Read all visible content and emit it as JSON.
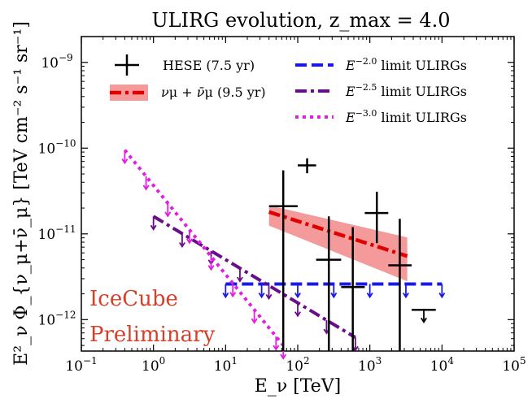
{
  "chart_data": {
    "type": "scatter",
    "title": "ULIRG evolution,  z_max = 4.0",
    "xlabel": "E_ν [TeV]",
    "ylabel": "E²_ν Φ_{ν_μ+ν̄_μ} [TeV cm⁻² s⁻¹ sr⁻¹]",
    "xscale": "log",
    "yscale": "log",
    "xlim": [
      0.1,
      100000
    ],
    "ylim": [
      4.3e-13,
      2e-09
    ],
    "x_ticks": [
      {
        "value": 0.1,
        "base": "10",
        "exp": "−1"
      },
      {
        "value": 1,
        "base": "10",
        "exp": "0"
      },
      {
        "value": 10,
        "base": "10",
        "exp": "1"
      },
      {
        "value": 100,
        "base": "10",
        "exp": "2"
      },
      {
        "value": 1000,
        "base": "10",
        "exp": "3"
      },
      {
        "value": 10000,
        "base": "10",
        "exp": "4"
      },
      {
        "value": 100000,
        "base": "10",
        "exp": "5"
      }
    ],
    "y_ticks": [
      {
        "value": 1e-12,
        "base": "10",
        "exp": "−12"
      },
      {
        "value": 1e-11,
        "base": "10",
        "exp": "−11"
      },
      {
        "value": 1e-10,
        "base": "10",
        "exp": "−10"
      },
      {
        "value": 1e-09,
        "base": "10",
        "exp": "−9"
      }
    ],
    "annotation": [
      "IceCube",
      "Preliminary"
    ],
    "legend_position": "top",
    "series": [
      {
        "name": "HESE (7.5 yr)",
        "kind": "errorbar",
        "color": "#000000",
        "points": [
          {
            "x": 63,
            "y": 2.1e-11,
            "xlo": 40,
            "xhi": 100,
            "ylo": 4.3e-13,
            "yhi": 5.5e-11
          },
          {
            "x": 135,
            "y": 6.3e-11,
            "xlo": 100,
            "xhi": 180,
            "ylo": 5.1e-11,
            "yhi": 7.6e-11
          },
          {
            "x": 270,
            "y": 5e-12,
            "xlo": 180,
            "xhi": 400,
            "ylo": 4.3e-13,
            "yhi": 1.6e-11
          },
          {
            "x": 580,
            "y": 2.4e-12,
            "xlo": 400,
            "xhi": 850,
            "ylo": 4.3e-13,
            "yhi": 1.2e-11
          },
          {
            "x": 1250,
            "y": 1.75e-11,
            "xlo": 850,
            "xhi": 1800,
            "ylo": 7.8e-12,
            "yhi": 3.1e-11
          },
          {
            "x": 2600,
            "y": 4.3e-12,
            "xlo": 1800,
            "xhi": 3800,
            "ylo": 4.3e-13,
            "yhi": 1.5e-11
          }
        ],
        "upper_limits": [
          {
            "x": 5600,
            "y": 1.3e-12,
            "xlo": 3800,
            "xhi": 8200
          }
        ]
      },
      {
        "name": "ν_μ + ν̄_μ (9.5 yr)",
        "kind": "band",
        "color": "#e00000",
        "band_color": "#f07878",
        "x": [
          40,
          3300
        ],
        "y": [
          1.8e-11,
          5.5e-12
        ],
        "band_lo": [
          1.25e-11,
          2.8e-12
        ],
        "band_hi": [
          2.15e-11,
          9.1e-12
        ]
      },
      {
        "name": "E^{−2.0} limit ULIRGs",
        "kind": "upper-limit-line",
        "color": "#1a1ae6",
        "x": [
          10,
          10000
        ],
        "y": [
          2.6e-12,
          2.6e-12
        ],
        "arrows_x": [
          10,
          31.6,
          100,
          316,
          1000,
          3160,
          10000
        ]
      },
      {
        "name": "E^{−2.5} limit ULIRGs",
        "kind": "upper-limit-line",
        "color": "#6a0d8a",
        "x": [
          1,
          630
        ],
        "y": [
          1.6e-11,
          6.2e-13
        ],
        "arrows_x": [
          1,
          2.5,
          6.3,
          15.8,
          39.8,
          100,
          251,
          630
        ]
      },
      {
        "name": "E^{−3.0} limit ULIRGs",
        "kind": "upper-limit-line",
        "color": "#e020e0",
        "x": [
          0.4,
          63
        ],
        "y": [
          9.5e-11,
          5e-13
        ],
        "arrows_x": [
          0.4,
          0.79,
          1.58,
          3.16,
          6.3,
          12.6,
          25,
          50,
          63
        ]
      }
    ]
  }
}
